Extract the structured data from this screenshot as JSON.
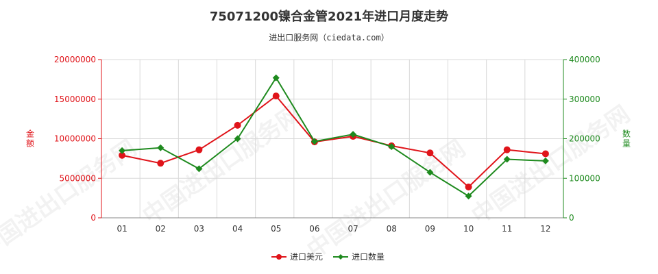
{
  "chart_data": {
    "type": "line",
    "title": "75071200镍合金管2021年进口月度走势",
    "subtitle": "进出口服务网（ciedata.com）",
    "watermark": "中国进出口服务网",
    "categories": [
      "01",
      "02",
      "03",
      "04",
      "05",
      "06",
      "07",
      "08",
      "09",
      "10",
      "11",
      "12"
    ],
    "y_left": {
      "label": "金额",
      "range": [
        0,
        20000000
      ],
      "ticks": [
        0,
        5000000,
        10000000,
        15000000,
        20000000
      ],
      "tick_labels": [
        "0",
        "5000000",
        "10000000",
        "15000000",
        "20000000"
      ],
      "color": "#e0141a"
    },
    "y_right": {
      "label": "数量",
      "range": [
        0,
        400000
      ],
      "ticks": [
        0,
        100000,
        200000,
        300000,
        400000
      ],
      "tick_labels": [
        "0",
        "100000",
        "200000",
        "300000",
        "400000"
      ],
      "color": "#1e8a1e"
    },
    "grid": true,
    "legend_position": "bottom-center",
    "series": [
      {
        "name": "进口美元",
        "axis": "left",
        "color": "#e0141a",
        "marker": "circle",
        "values": [
          7900000,
          6900000,
          8600000,
          11700000,
          15400000,
          9600000,
          10300000,
          9100000,
          8200000,
          3900000,
          8600000,
          8100000
        ]
      },
      {
        "name": "进口数量",
        "axis": "right",
        "color": "#1e8a1e",
        "marker": "diamond",
        "values": [
          170000,
          177000,
          124000,
          200000,
          354000,
          193000,
          211000,
          180000,
          115000,
          55000,
          148000,
          144000
        ]
      }
    ]
  }
}
